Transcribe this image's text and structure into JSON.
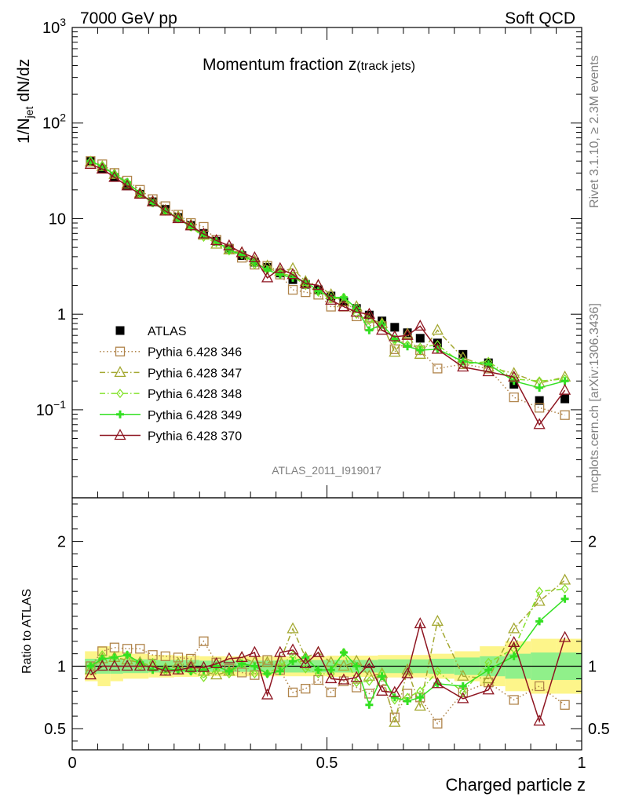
{
  "header": {
    "energy_label": "7000 GeV pp",
    "process_label": "Soft QCD"
  },
  "side": {
    "rivet_label": "Rivet 3.1.10, ≥ 2.3M events",
    "mcplots_label": "mcplots.cern.ch [arXiv:1306.3436]"
  },
  "chart_data": [
    {
      "type": "scatter",
      "title": "Momentum fraction",
      "title_symbol": "z",
      "title_sub": "(track jets)",
      "ylabel": {
        "main": "1/N",
        "sub": "jet",
        "rest": " dN/dz"
      },
      "yscale": "log",
      "ylim": [
        0.012,
        1000
      ],
      "xlim": [
        0,
        1
      ],
      "yticks": [
        {
          "value": 1000,
          "base": "10",
          "exp": "3"
        },
        {
          "value": 100,
          "base": "10",
          "exp": "2"
        },
        {
          "value": 10,
          "base": "10",
          "exp": ""
        },
        {
          "value": 1,
          "base": "1",
          "exp": ""
        },
        {
          "value": 0.1,
          "base": "10",
          "exp": "−1"
        }
      ],
      "watermark": "ATLAS_2011_I919017",
      "x": [
        0.036,
        0.059,
        0.083,
        0.108,
        0.133,
        0.158,
        0.183,
        0.208,
        0.233,
        0.258,
        0.283,
        0.308,
        0.333,
        0.358,
        0.383,
        0.408,
        0.433,
        0.458,
        0.483,
        0.508,
        0.533,
        0.558,
        0.583,
        0.608,
        0.633,
        0.658,
        0.683,
        0.717,
        0.767,
        0.817,
        0.867,
        0.917,
        0.967
      ],
      "series": [
        {
          "name": "ATLAS",
          "color": "#000000",
          "marker": "filled-square",
          "line": "none",
          "values": [
            40,
            33,
            27,
            22,
            18,
            15,
            12.5,
            10.3,
            8.5,
            7.0,
            5.8,
            4.9,
            4.1,
            3.5,
            3.1,
            2.7,
            2.3,
            2.05,
            1.8,
            1.55,
            1.35,
            1.15,
            0.98,
            0.85,
            0.73,
            0.64,
            0.56,
            0.5,
            0.38,
            0.31,
            0.185,
            0.125,
            0.13
          ]
        },
        {
          "name": "Pythia 6.428 346",
          "color": "#b0844a",
          "marker": "open-square",
          "line": "dotted",
          "values": [
            40,
            37,
            30,
            25,
            20,
            16,
            13.5,
            11,
            9,
            8.2,
            6.0,
            4.8,
            3.9,
            3.3,
            3.2,
            2.6,
            1.8,
            1.7,
            1.6,
            1.2,
            1.2,
            0.95,
            0.76,
            0.75,
            0.43,
            0.5,
            0.42,
            0.27,
            0.3,
            0.27,
            0.135,
            0.105,
            0.088
          ]
        },
        {
          "name": "Pythia 6.428 347",
          "color": "#a4a832",
          "marker": "open-triangle",
          "line": "dashdot",
          "values": [
            39,
            35,
            29,
            23,
            18.5,
            15,
            12.2,
            10.5,
            8.6,
            6.7,
            5.4,
            4.7,
            4.4,
            3.6,
            3.2,
            2.8,
            3.0,
            2.2,
            2.0,
            1.6,
            1.35,
            1.2,
            0.9,
            0.8,
            0.4,
            0.62,
            0.38,
            0.68,
            0.35,
            0.28,
            0.24,
            0.19,
            0.22
          ]
        },
        {
          "name": "Pythia 6.428 348",
          "color": "#84e22c",
          "marker": "open-diamond",
          "line": "dashdot",
          "values": [
            40,
            36,
            29,
            24,
            18,
            15.5,
            12,
            10,
            8.2,
            6.4,
            5.6,
            4.6,
            4.2,
            3.3,
            2.9,
            2.7,
            2.5,
            2.0,
            1.7,
            1.45,
            1.5,
            1.0,
            0.86,
            0.8,
            0.53,
            0.48,
            0.45,
            0.48,
            0.3,
            0.32,
            0.21,
            0.2,
            0.21
          ]
        },
        {
          "name": "Pythia 6.428 349",
          "color": "#33e022",
          "marker": "plus",
          "line": "solid",
          "values": [
            40,
            35,
            29,
            24,
            18.5,
            14.5,
            12.2,
            10,
            8.2,
            6.8,
            5.8,
            4.7,
            4.2,
            3.5,
            2.9,
            2.6,
            2.4,
            2.2,
            1.75,
            1.5,
            1.5,
            1.15,
            0.68,
            0.78,
            0.55,
            0.46,
            0.42,
            0.43,
            0.32,
            0.3,
            0.2,
            0.17,
            0.2
          ]
        },
        {
          "name": "Pythia 6.428 370",
          "color": "#8e1521",
          "marker": "open-triangle",
          "line": "solid",
          "values": [
            37,
            33,
            27,
            22,
            18,
            15,
            12,
            10,
            8.4,
            6.9,
            5.9,
            5.2,
            4.4,
            3.9,
            2.4,
            3.0,
            2.6,
            2.1,
            2.0,
            1.4,
            1.2,
            1.05,
            1.0,
            0.68,
            0.58,
            0.6,
            0.75,
            0.43,
            0.28,
            0.25,
            0.22,
            0.07,
            0.16
          ]
        }
      ]
    },
    {
      "type": "scatter",
      "ylabel": "Ratio to ATLAS",
      "xlabel": "Charged particle z",
      "ylim": [
        0.33,
        2.35
      ],
      "xlim": [
        0,
        1
      ],
      "yticks": [
        {
          "value": 2,
          "label": "2"
        },
        {
          "value": 1,
          "label": "1"
        },
        {
          "value": 0.5,
          "label": "0.5"
        }
      ],
      "xticks": [
        {
          "value": 0,
          "label": "0"
        },
        {
          "value": 0.5,
          "label": "0.5"
        },
        {
          "value": 1,
          "label": "1"
        }
      ],
      "bands": {
        "inner_color": "#90f08a",
        "outer_color": "#fdf58a",
        "x": [
          0.025,
          0.05,
          0.075,
          0.1,
          0.15,
          0.2,
          0.25,
          0.3,
          0.4,
          0.5,
          0.6,
          0.7,
          0.75,
          0.8,
          0.85,
          0.9,
          0.95,
          1.0
        ],
        "inner": [
          0.06,
          0.06,
          0.06,
          0.055,
          0.05,
          0.05,
          0.045,
          0.045,
          0.05,
          0.05,
          0.055,
          0.06,
          0.07,
          0.08,
          0.1,
          0.11,
          0.11
        ],
        "outer": [
          0.12,
          0.16,
          0.12,
          0.1,
          0.09,
          0.085,
          0.08,
          0.08,
          0.08,
          0.085,
          0.09,
          0.1,
          0.12,
          0.16,
          0.2,
          0.22,
          0.22
        ]
      },
      "series": [
        {
          "name": "Pythia 6.428 346",
          "color": "#b0844a",
          "marker": "open-square",
          "line": "dotted",
          "values": [
            1.0,
            1.12,
            1.15,
            1.14,
            1.14,
            1.09,
            1.08,
            1.07,
            1.06,
            1.2,
            1.03,
            0.98,
            0.95,
            0.93,
            1.05,
            0.97,
            0.79,
            0.82,
            0.89,
            0.79,
            0.88,
            0.83,
            0.78,
            0.88,
            0.59,
            0.78,
            0.75,
            0.54,
            0.79,
            0.87,
            0.73,
            0.84,
            0.69
          ]
        },
        {
          "name": "Pythia 6.428 347",
          "color": "#a4a832",
          "marker": "open-triangle",
          "line": "dashdot",
          "values": [
            0.97,
            1.06,
            1.07,
            1.05,
            1.03,
            1.0,
            0.98,
            1.02,
            1.01,
            0.96,
            0.93,
            0.96,
            1.07,
            1.03,
            1.03,
            1.04,
            1.3,
            1.07,
            1.11,
            1.03,
            1.0,
            1.04,
            0.92,
            0.94,
            0.55,
            0.97,
            0.68,
            1.36,
            0.92,
            0.9,
            1.3,
            1.52,
            1.69
          ]
        },
        {
          "name": "Pythia 6.428 348",
          "color": "#84e22c",
          "marker": "open-diamond",
          "line": "dashdot",
          "values": [
            1.0,
            1.09,
            1.07,
            1.09,
            1.0,
            1.03,
            0.96,
            0.97,
            0.96,
            0.91,
            0.97,
            0.94,
            1.02,
            0.94,
            0.94,
            1.0,
            1.09,
            0.98,
            0.94,
            0.94,
            1.11,
            0.87,
            0.88,
            0.94,
            0.73,
            0.75,
            0.8,
            0.96,
            0.79,
            1.03,
            1.14,
            1.6,
            1.62
          ]
        },
        {
          "name": "Pythia 6.428 349",
          "color": "#33e022",
          "marker": "plus",
          "line": "solid",
          "values": [
            1.0,
            1.06,
            1.07,
            1.09,
            1.03,
            0.97,
            0.98,
            0.97,
            0.96,
            0.97,
            1.0,
            0.96,
            1.02,
            1.0,
            0.94,
            0.96,
            1.04,
            1.07,
            0.97,
            0.97,
            1.11,
            1.0,
            0.69,
            0.92,
            0.75,
            0.72,
            0.75,
            0.86,
            0.84,
            0.97,
            1.08,
            1.36,
            1.54
          ]
        },
        {
          "name": "Pythia 6.428 370",
          "color": "#8e1521",
          "marker": "open-triangle",
          "line": "solid",
          "values": [
            0.93,
            1.0,
            1.0,
            1.0,
            1.0,
            1.0,
            0.96,
            0.97,
            0.99,
            0.99,
            1.02,
            1.06,
            1.07,
            1.11,
            0.77,
            1.11,
            1.13,
            1.02,
            1.11,
            0.9,
            0.89,
            0.91,
            1.02,
            0.8,
            0.79,
            0.94,
            1.34,
            0.86,
            0.74,
            0.81,
            1.19,
            0.56,
            1.23
          ]
        }
      ]
    }
  ]
}
